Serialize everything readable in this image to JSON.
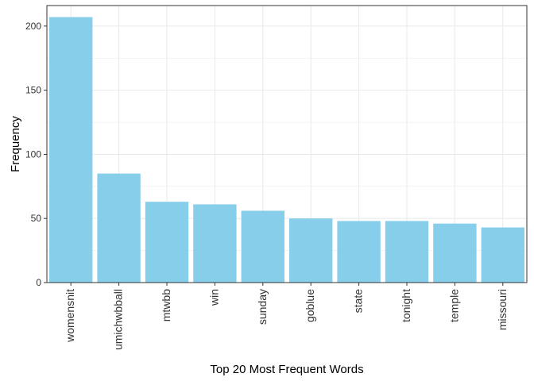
{
  "chart_data": {
    "type": "bar",
    "title": "",
    "xlabel": "Top 20 Most Frequent Words",
    "ylabel": "Frequency",
    "categories": [
      "womensnit",
      "umichwbball",
      "mtwbb",
      "win",
      "sunday",
      "goblue",
      "state",
      "tonight",
      "temple",
      "missouri"
    ],
    "values": [
      207,
      85,
      63,
      61,
      56,
      50,
      48,
      48,
      46,
      43
    ],
    "ylim": [
      0,
      216
    ],
    "yticks": [
      "0",
      "50",
      "100",
      "150",
      "200"
    ],
    "grid": true,
    "legend": "none",
    "bar_color": "#87CEEB",
    "grid_color": "#EBEBEB",
    "panel_border_color": "#333333"
  }
}
